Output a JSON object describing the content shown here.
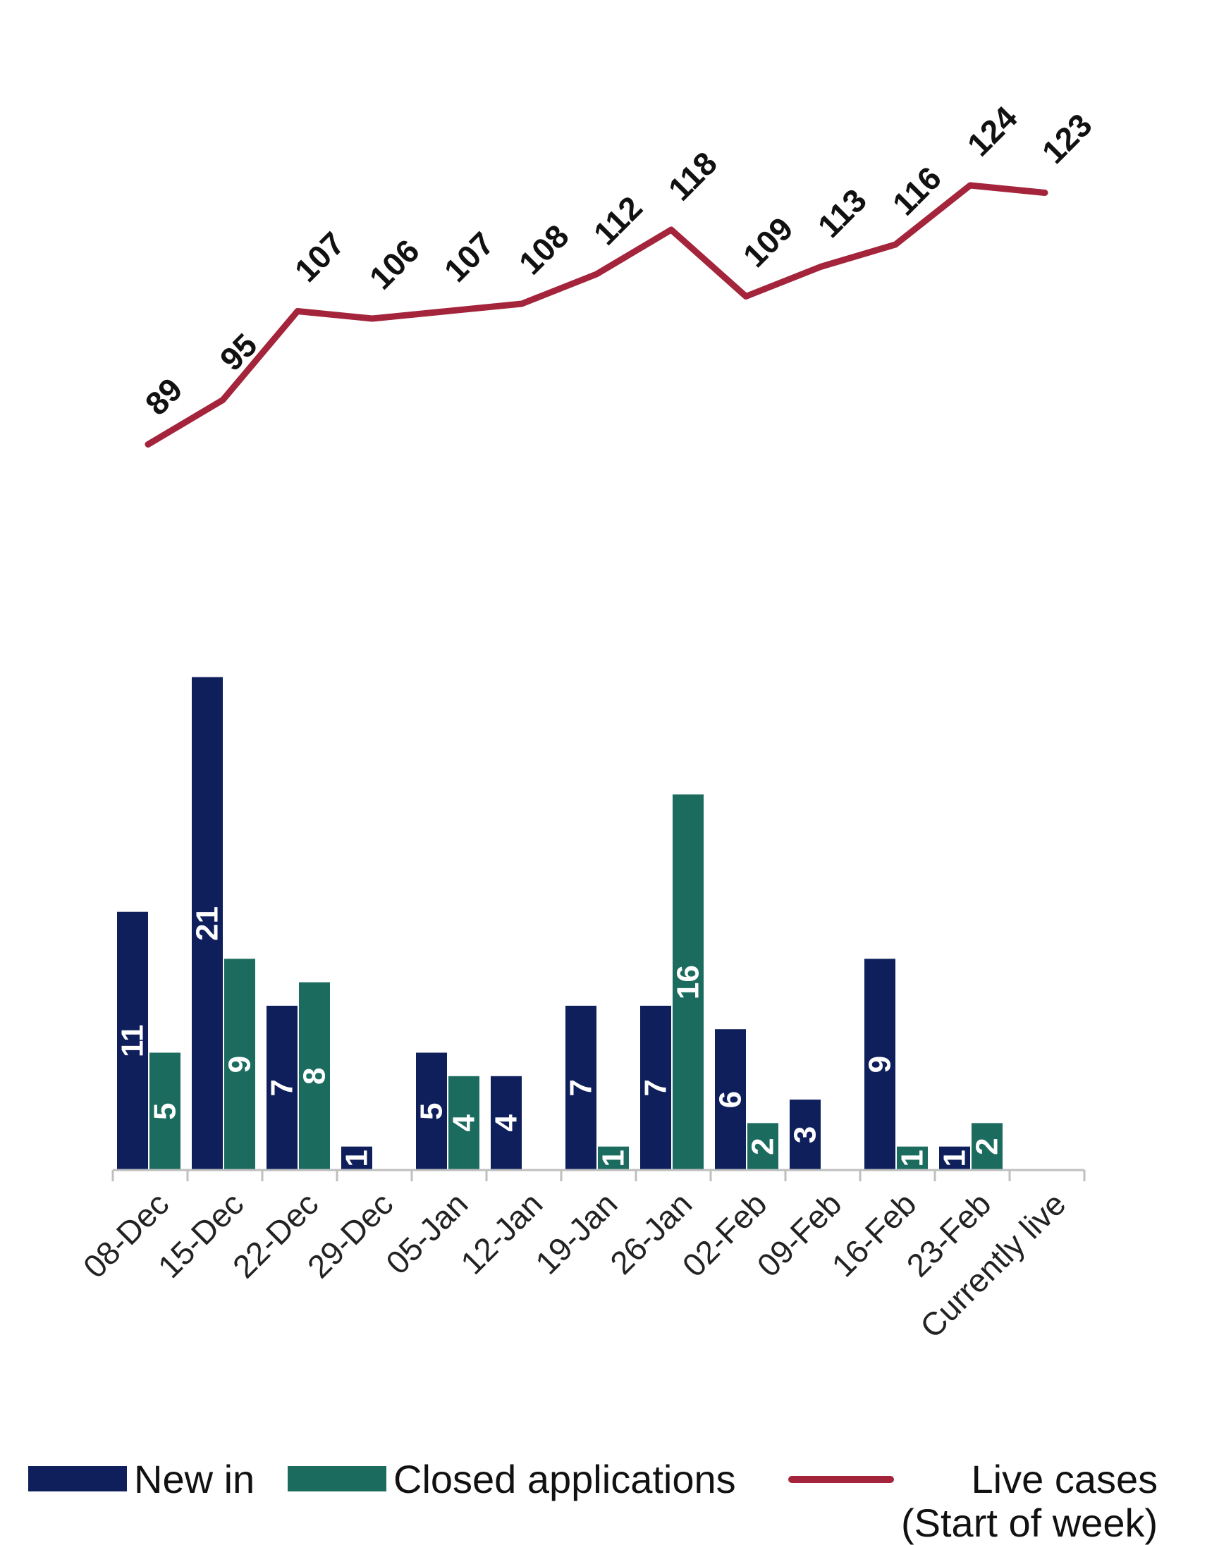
{
  "chart_data": {
    "type": "bar",
    "categories": [
      "08-Dec",
      "15-Dec",
      "22-Dec",
      "29-Dec",
      "05-Jan",
      "12-Jan",
      "19-Jan",
      "26-Jan",
      "02-Feb",
      "09-Feb",
      "16-Feb",
      "23-Feb",
      "Currently live"
    ],
    "series": [
      {
        "name": "New in",
        "type": "bar",
        "color": "#0f1f5c",
        "values": [
          11,
          21,
          7,
          1,
          5,
          4,
          7,
          7,
          6,
          3,
          9,
          1,
          null
        ]
      },
      {
        "name": "Closed applications",
        "type": "bar",
        "color": "#1b6b5f",
        "values": [
          5,
          9,
          8,
          null,
          4,
          null,
          1,
          16,
          2,
          null,
          1,
          2,
          null
        ]
      },
      {
        "name": "Live cases\n(Start of week)",
        "type": "line",
        "color": "#a3243b",
        "values": [
          89,
          95,
          107,
          106,
          107,
          108,
          112,
          118,
          109,
          113,
          116,
          124,
          123
        ]
      }
    ],
    "legend_position": "bottom",
    "grid": false
  },
  "legend": {
    "new_in": "New in",
    "closed": "Closed applications",
    "live_line1": "Live cases",
    "live_line2": "(Start of week)"
  }
}
